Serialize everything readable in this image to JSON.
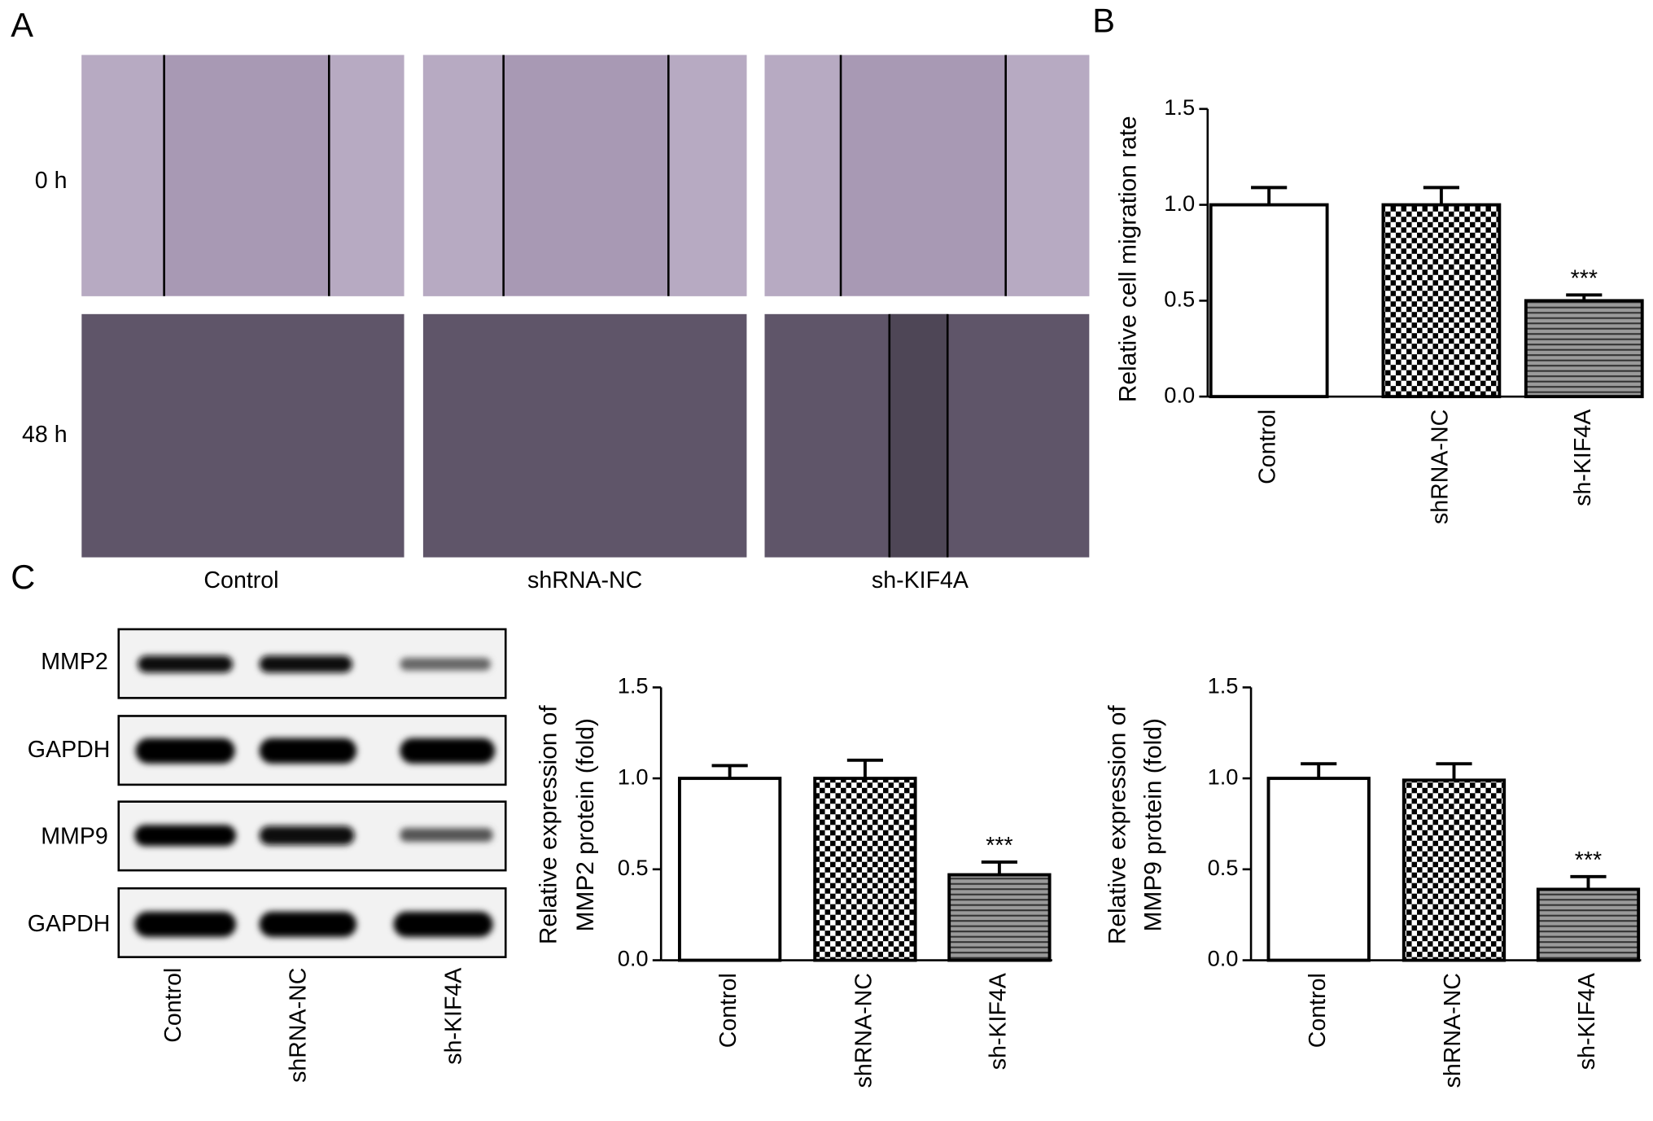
{
  "panels": [
    "A",
    "B",
    "C"
  ],
  "micrographs": {
    "rows": [
      "0 h",
      "48 h"
    ],
    "columns": [
      "Control",
      "shRNA-NC",
      "sh-KIF4A"
    ]
  },
  "western_blot": {
    "proteins": [
      "MMP2",
      "GAPDH",
      "MMP9",
      "GAPDH"
    ],
    "lanes": [
      "Control",
      "shRNA-NC",
      "sh-KIF4A"
    ]
  },
  "chart_data": [
    {
      "type": "bar",
      "ylabel": [
        "Relative cell migration rate"
      ],
      "categories": [
        "Control",
        "shRNA-NC",
        "sh-KIF4A"
      ],
      "values": [
        1.0,
        1.0,
        0.5
      ],
      "errors": [
        0.09,
        0.09,
        0.03
      ],
      "value_annotations": [
        null,
        null,
        "***"
      ],
      "patterns": [
        "none",
        "checker",
        "hlines"
      ],
      "ylim": [
        0,
        1.5
      ],
      "yticks": [
        {
          "value": 0,
          "label": "0.0"
        },
        {
          "value": 0.5,
          "label": "0.5"
        },
        {
          "value": 1,
          "label": "1.0"
        },
        {
          "value": 1.5,
          "label": "1.5"
        }
      ]
    },
    {
      "type": "bar",
      "ylabel": [
        "Relative expression of",
        "MMP2 protein (fold)"
      ],
      "categories": [
        "Control",
        "shRNA-NC",
        "sh-KIF4A"
      ],
      "values": [
        1.0,
        1.0,
        0.47
      ],
      "errors": [
        0.07,
        0.1,
        0.07
      ],
      "value_annotations": [
        null,
        null,
        "***"
      ],
      "patterns": [
        "none",
        "checker",
        "hlines"
      ],
      "ylim": [
        0,
        1.5
      ],
      "yticks": [
        {
          "value": 0,
          "label": "0.0"
        },
        {
          "value": 0.5,
          "label": "0.5"
        },
        {
          "value": 1,
          "label": "1.0"
        },
        {
          "value": 1.5,
          "label": "1.5"
        }
      ]
    },
    {
      "type": "bar",
      "ylabel": [
        "Relative expression of",
        "MMP9 protein (fold)"
      ],
      "categories": [
        "Control",
        "shRNA-NC",
        "sh-KIF4A"
      ],
      "values": [
        1.0,
        0.99,
        0.39
      ],
      "errors": [
        0.08,
        0.09,
        0.07
      ],
      "value_annotations": [
        null,
        null,
        "***"
      ],
      "patterns": [
        "none",
        "checker",
        "hlines"
      ],
      "ylim": [
        0,
        1.5
      ],
      "yticks": [
        {
          "value": 0,
          "label": "0.0"
        },
        {
          "value": 0.5,
          "label": "0.5"
        },
        {
          "value": 1,
          "label": "1.0"
        },
        {
          "value": 1.5,
          "label": "1.5"
        }
      ]
    }
  ]
}
